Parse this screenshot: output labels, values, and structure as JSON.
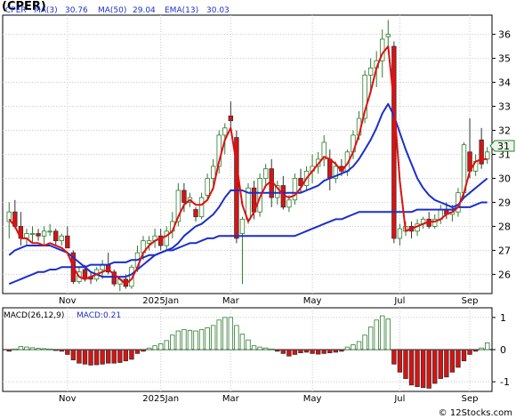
{
  "title": "(CPER)",
  "watermark": "© 12Stocks.com",
  "colors": {
    "up": "#2e7d2e",
    "down": "#dd1111",
    "ma3": "#dd1111",
    "ma50": "#1a2fcc",
    "ema13": "#1a2fcc",
    "grid": "#c8c8c8"
  },
  "legend": {
    "symbol": "CPER",
    "ma3_label": "MA(3)",
    "ma3_value": "30.76",
    "ma50_label": "MA(50)",
    "ma50_value": "29.04",
    "ema13_label": "EMA(13)",
    "ema13_value": "30.03"
  },
  "macd_legend": {
    "label": "MACD(26,12,9)",
    "value_label": "MACD:0.21"
  },
  "last_price_tag": "31",
  "chart_data": [
    {
      "type": "candlestick",
      "ylim": [
        25.2,
        36.8
      ],
      "yticks": [
        26,
        27,
        28,
        29,
        30,
        31,
        32,
        33,
        34,
        35,
        36
      ],
      "xticks": [
        "Nov",
        "2025Jan",
        "Mar",
        "May",
        "Jul",
        "Sep"
      ],
      "xtick_index": [
        10,
        26,
        38,
        52,
        67,
        79
      ],
      "candles": [
        [
          28.2,
          29.0,
          27.5,
          28.6
        ],
        [
          28.6,
          29.1,
          27.9,
          28.0
        ],
        [
          28.0,
          28.6,
          27.2,
          27.5
        ],
        [
          27.5,
          27.9,
          27.2,
          27.7
        ],
        [
          27.7,
          28.0,
          27.3,
          27.7
        ],
        [
          27.7,
          27.9,
          27.4,
          27.6
        ],
        [
          27.6,
          28.0,
          27.2,
          27.8
        ],
        [
          27.8,
          28.1,
          27.6,
          27.8
        ],
        [
          27.8,
          27.9,
          27.2,
          27.4
        ],
        [
          27.4,
          27.7,
          27.2,
          27.6
        ],
        [
          27.6,
          28.0,
          27.1,
          27.1
        ],
        [
          26.9,
          27.0,
          25.6,
          25.7
        ],
        [
          25.7,
          26.3,
          25.6,
          26.1
        ],
        [
          26.2,
          26.4,
          25.7,
          25.8
        ],
        [
          25.9,
          26.1,
          25.6,
          25.8
        ],
        [
          25.8,
          26.3,
          25.7,
          26.2
        ],
        [
          26.2,
          26.6,
          25.8,
          26.4
        ],
        [
          26.4,
          26.9,
          26.0,
          26.1
        ],
        [
          26.1,
          26.2,
          25.5,
          25.6
        ],
        [
          25.6,
          25.9,
          25.3,
          25.8
        ],
        [
          25.8,
          26.0,
          25.4,
          25.5
        ],
        [
          25.5,
          26.4,
          25.4,
          26.3
        ],
        [
          26.3,
          27.2,
          26.1,
          26.9
        ],
        [
          26.9,
          27.6,
          26.6,
          27.4
        ],
        [
          27.3,
          27.6,
          27.0,
          27.4
        ],
        [
          27.4,
          27.9,
          27.1,
          27.6
        ],
        [
          27.6,
          27.9,
          27.0,
          27.2
        ],
        [
          27.2,
          28.0,
          27.0,
          27.8
        ],
        [
          27.8,
          28.6,
          27.5,
          28.2
        ],
        [
          28.2,
          29.8,
          28.0,
          29.5
        ],
        [
          29.5,
          29.8,
          28.6,
          29.0
        ],
        [
          29.0,
          29.4,
          28.8,
          29.2
        ],
        [
          28.7,
          28.8,
          28.2,
          28.4
        ],
        [
          28.4,
          29.4,
          28.3,
          29.2
        ],
        [
          29.3,
          30.2,
          29.1,
          30.0
        ],
        [
          30.0,
          30.8,
          29.5,
          30.5
        ],
        [
          30.5,
          32.0,
          30.2,
          31.8
        ],
        [
          31.8,
          32.3,
          31.0,
          32.1
        ],
        [
          32.6,
          33.2,
          32.0,
          32.4
        ],
        [
          31.7,
          32.0,
          27.3,
          27.5
        ],
        [
          27.7,
          28.4,
          25.6,
          28.3
        ],
        [
          28.3,
          29.8,
          28.1,
          29.6
        ],
        [
          29.6,
          29.9,
          28.3,
          28.6
        ],
        [
          28.6,
          30.2,
          28.4,
          30.0
        ],
        [
          30.0,
          30.6,
          29.6,
          30.4
        ],
        [
          30.4,
          30.8,
          28.8,
          29.2
        ],
        [
          29.2,
          29.9,
          28.9,
          29.7
        ],
        [
          29.7,
          30.1,
          28.7,
          28.8
        ],
        [
          28.8,
          29.3,
          28.6,
          29.1
        ],
        [
          29.1,
          30.2,
          28.9,
          30.0
        ],
        [
          30.0,
          30.4,
          29.4,
          29.7
        ],
        [
          29.7,
          30.5,
          29.5,
          30.3
        ],
        [
          30.3,
          31.0,
          29.8,
          30.5
        ],
        [
          30.5,
          31.1,
          30.2,
          30.8
        ],
        [
          30.8,
          31.8,
          30.5,
          31.5
        ],
        [
          30.8,
          31.2,
          29.5,
          30.0
        ],
        [
          30.0,
          30.7,
          29.8,
          30.5
        ],
        [
          30.5,
          30.8,
          30.1,
          30.3
        ],
        [
          30.3,
          31.2,
          30.1,
          31.1
        ],
        [
          31.1,
          32.0,
          30.8,
          31.8
        ],
        [
          31.8,
          32.8,
          31.6,
          32.5
        ],
        [
          32.5,
          34.5,
          32.3,
          34.3
        ],
        [
          34.3,
          35.0,
          33.6,
          34.6
        ],
        [
          34.6,
          35.3,
          33.8,
          34.9
        ],
        [
          34.9,
          36.2,
          34.2,
          35.8
        ],
        [
          35.9,
          36.6,
          35.4,
          36.0
        ],
        [
          35.5,
          35.7,
          27.3,
          27.5
        ],
        [
          27.5,
          28.1,
          27.2,
          27.9
        ],
        [
          27.8,
          28.2,
          27.6,
          28.0
        ],
        [
          28.0,
          28.2,
          27.5,
          27.8
        ],
        [
          27.8,
          28.3,
          27.6,
          28.1
        ],
        [
          28.1,
          28.4,
          27.9,
          28.3
        ],
        [
          28.3,
          28.6,
          27.9,
          28.0
        ],
        [
          28.0,
          28.5,
          27.9,
          28.3
        ],
        [
          28.3,
          28.9,
          28.1,
          28.7
        ],
        [
          28.7,
          29.0,
          28.3,
          28.5
        ],
        [
          28.5,
          28.9,
          28.2,
          28.6
        ],
        [
          28.6,
          29.6,
          28.4,
          29.4
        ],
        [
          29.4,
          31.5,
          29.2,
          31.4
        ],
        [
          31.1,
          32.5,
          30.0,
          30.3
        ],
        [
          30.3,
          31.0,
          30.1,
          30.7
        ],
        [
          31.6,
          32.1,
          30.4,
          30.6
        ],
        [
          30.8,
          31.3,
          30.6,
          31.1
        ]
      ],
      "ma3": [
        28.3,
        28.0,
        27.5,
        27.5,
        27.3,
        27.3,
        27.2,
        27.3,
        27.2,
        27.1,
        26.9,
        26.3,
        25.9,
        25.8,
        25.9,
        26.0,
        26.1,
        26.2,
        26.0,
        25.8,
        25.6,
        25.8,
        26.3,
        26.9,
        27.2,
        27.4,
        27.5,
        27.6,
        27.8,
        28.4,
        28.9,
        29.1,
        28.9,
        28.9,
        29.1,
        29.6,
        30.7,
        31.6,
        32.1,
        30.6,
        28.9,
        28.2,
        28.6,
        29.2,
        29.7,
        29.9,
        29.6,
        29.3,
        29.2,
        29.3,
        29.6,
        30.0,
        30.3,
        30.6,
        30.9,
        30.8,
        30.6,
        30.3,
        30.6,
        31.1,
        31.8,
        32.8,
        33.6,
        34.6,
        35.2,
        35.5,
        33.1,
        29.9,
        27.8,
        27.9,
        28.0,
        28.1,
        28.2,
        28.2,
        28.3,
        28.5,
        28.6,
        28.8,
        29.4,
        30.3,
        30.7,
        30.8,
        30.8
      ],
      "ema13": [
        26.8,
        27.0,
        27.1,
        27.2,
        27.2,
        27.2,
        27.2,
        27.2,
        27.1,
        27.0,
        26.9,
        26.7,
        26.5,
        26.3,
        26.1,
        26.0,
        25.9,
        25.9,
        25.9,
        25.9,
        25.9,
        26.0,
        26.2,
        26.4,
        26.6,
        26.8,
        26.9,
        27.0,
        27.1,
        27.3,
        27.6,
        27.8,
        28.0,
        28.1,
        28.3,
        28.5,
        28.8,
        29.2,
        29.5,
        29.5,
        29.5,
        29.4,
        29.4,
        29.4,
        29.4,
        29.4,
        29.4,
        29.4,
        29.4,
        29.4,
        29.4,
        29.5,
        29.6,
        29.7,
        29.9,
        30.0,
        30.1,
        30.2,
        30.3,
        30.5,
        30.8,
        31.2,
        31.6,
        32.1,
        32.7,
        33.1,
        32.6,
        31.9,
        31.2,
        30.6,
        30.0,
        29.6,
        29.3,
        29.1,
        29.0,
        28.9,
        28.8,
        28.9,
        29.2,
        29.4,
        29.6,
        29.8,
        30.0
      ],
      "ma50": [
        25.6,
        25.7,
        25.8,
        25.9,
        26.0,
        26.1,
        26.1,
        26.2,
        26.2,
        26.3,
        26.3,
        26.3,
        26.3,
        26.3,
        26.4,
        26.4,
        26.4,
        26.4,
        26.5,
        26.5,
        26.5,
        26.6,
        26.6,
        26.7,
        26.8,
        26.8,
        26.9,
        27.0,
        27.0,
        27.1,
        27.2,
        27.3,
        27.3,
        27.4,
        27.5,
        27.5,
        27.6,
        27.6,
        27.6,
        27.6,
        27.6,
        27.6,
        27.6,
        27.6,
        27.6,
        27.6,
        27.6,
        27.6,
        27.6,
        27.6,
        27.7,
        27.8,
        27.9,
        28.0,
        28.1,
        28.2,
        28.3,
        28.3,
        28.4,
        28.5,
        28.6,
        28.6,
        28.6,
        28.6,
        28.6,
        28.6,
        28.6,
        28.6,
        28.6,
        28.6,
        28.7,
        28.7,
        28.7,
        28.7,
        28.7,
        28.7,
        28.7,
        28.8,
        28.8,
        28.8,
        28.9,
        29.0,
        29.0
      ]
    },
    {
      "type": "bar",
      "title": "MACD(26,12,9)",
      "ylim": [
        -1.3,
        1.3
      ],
      "yticks": [
        -1,
        0,
        1
      ],
      "xticks": [
        "Nov",
        "2025Jan",
        "Mar",
        "May",
        "Jul",
        "Sep"
      ],
      "xtick_index": [
        10,
        26,
        38,
        52,
        67,
        79
      ],
      "values": [
        -0.05,
        0.02,
        0.1,
        0.08,
        0.06,
        0.04,
        0.03,
        0.02,
        -0.02,
        -0.05,
        -0.15,
        -0.32,
        -0.42,
        -0.45,
        -0.48,
        -0.47,
        -0.45,
        -0.42,
        -0.42,
        -0.4,
        -0.35,
        -0.3,
        -0.12,
        -0.05,
        0.05,
        0.12,
        0.18,
        0.28,
        0.45,
        0.58,
        0.62,
        0.6,
        0.58,
        0.62,
        0.68,
        0.75,
        0.92,
        1.0,
        1.0,
        0.75,
        0.48,
        0.3,
        0.12,
        0.08,
        0.05,
        0.02,
        -0.05,
        -0.12,
        -0.2,
        -0.15,
        -0.1,
        -0.08,
        -0.12,
        -0.14,
        -0.12,
        -0.1,
        -0.08,
        -0.05,
        0.08,
        0.15,
        0.25,
        0.45,
        0.7,
        0.92,
        1.05,
        0.95,
        -0.45,
        -0.7,
        -0.9,
        -1.1,
        -1.15,
        -1.18,
        -1.2,
        -1.05,
        -0.9,
        -0.85,
        -0.7,
        -0.55,
        -0.35,
        -0.15,
        -0.05,
        0.05,
        0.21
      ]
    }
  ]
}
